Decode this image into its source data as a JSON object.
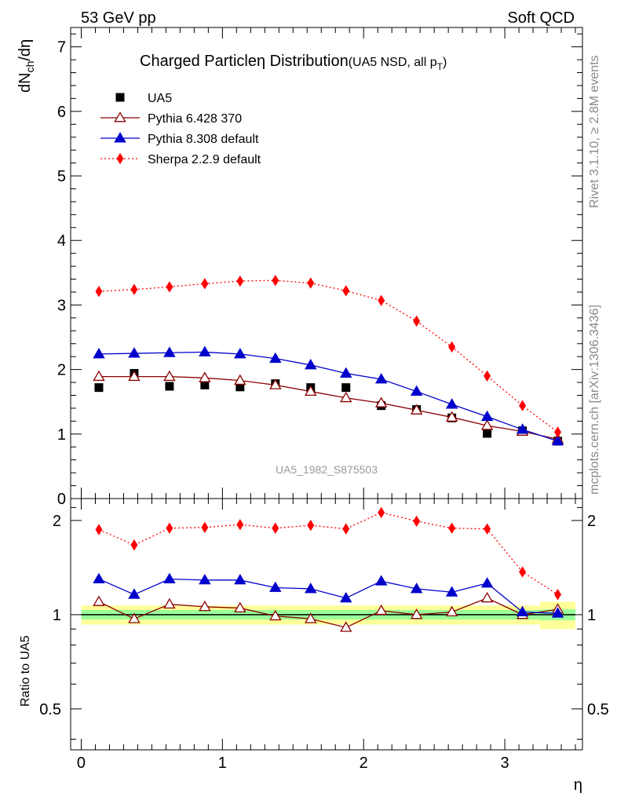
{
  "header": {
    "left": "53 GeV pp",
    "right": "Soft QCD"
  },
  "side": {
    "rivet": "Rivet 3.1.10, ≥ 2.8M events",
    "mcplots": "mcplots.cern.ch [arXiv:1306.3436]"
  },
  "chart_data": {
    "type": "line",
    "title_main": "Charged Particle",
    "title_eta": "η",
    "title_tail": " Distribution",
    "title_sub": "(UA5 NSD, all p",
    "title_sub_idx": "T",
    "title_sub_close": ")",
    "watermark": "UA5_1982_S875503",
    "ylabel_top_a": "dN",
    "ylabel_top_sub": "ch",
    "ylabel_top_b": "/dη",
    "ylabel_ratio": "Ratio to UA5",
    "xlabel": "η",
    "top_ylim": [
      0,
      7.3
    ],
    "top_yticks": [
      "0",
      "1",
      "2",
      "3",
      "4",
      "5",
      "6",
      "7"
    ],
    "ratio_ylim": [
      0.37,
      2.35
    ],
    "ratio_yticks": [
      "0.5",
      "1",
      "2"
    ],
    "ratio_ytick_values": [
      0.5,
      1,
      2
    ],
    "xlim": [
      -0.075,
      3.55
    ],
    "xticks": [
      "0",
      "1",
      "2",
      "3"
    ],
    "x": [
      0.125,
      0.375,
      0.625,
      0.875,
      1.125,
      1.375,
      1.625,
      1.875,
      2.125,
      2.375,
      2.625,
      2.875,
      3.125,
      3.375
    ],
    "band_outer": [
      0.07,
      0.07,
      0.07,
      0.07,
      0.07,
      0.07,
      0.07,
      0.07,
      0.07,
      0.07,
      0.07,
      0.07,
      0.07,
      0.1
    ],
    "band_inner": [
      0.035,
      0.035,
      0.035,
      0.035,
      0.035,
      0.035,
      0.035,
      0.035,
      0.035,
      0.035,
      0.035,
      0.035,
      0.035,
      0.04
    ],
    "series": [
      {
        "name": "UA5",
        "color": "#000000",
        "marker": "square",
        "style": "none",
        "values": [
          1.72,
          1.94,
          1.74,
          1.76,
          1.73,
          1.78,
          1.72,
          1.72,
          1.44,
          1.38,
          1.25,
          1.01,
          1.05,
          0.89
        ]
      },
      {
        "name": "Pythia 6.428 370",
        "color": "#8b0000",
        "marker": "triangle-open",
        "style": "solid",
        "values": [
          1.89,
          1.89,
          1.89,
          1.87,
          1.83,
          1.76,
          1.66,
          1.56,
          1.48,
          1.37,
          1.26,
          1.13,
          1.04,
          0.92
        ],
        "ratio": [
          1.1,
          0.97,
          1.08,
          1.06,
          1.05,
          0.99,
          0.97,
          0.91,
          1.03,
          1.0,
          1.02,
          1.13,
          1.0,
          1.04
        ]
      },
      {
        "name": "Pythia 8.308 default",
        "color": "#0000cc",
        "marker": "triangle",
        "style": "solid",
        "values": [
          2.24,
          2.25,
          2.26,
          2.27,
          2.24,
          2.17,
          2.07,
          1.94,
          1.85,
          1.66,
          1.46,
          1.27,
          1.07,
          0.89
        ],
        "ratio": [
          1.3,
          1.16,
          1.3,
          1.29,
          1.29,
          1.22,
          1.21,
          1.13,
          1.28,
          1.21,
          1.18,
          1.26,
          1.02,
          1.01
        ]
      },
      {
        "name": "Sherpa 2.2.9 default",
        "color": "#ff0000",
        "marker": "diamond",
        "style": "dotted",
        "values": [
          3.21,
          3.24,
          3.28,
          3.33,
          3.37,
          3.38,
          3.34,
          3.22,
          3.07,
          2.75,
          2.35,
          1.9,
          1.44,
          1.03
        ],
        "ratio": [
          1.87,
          1.67,
          1.89,
          1.9,
          1.94,
          1.89,
          1.93,
          1.88,
          2.12,
          1.99,
          1.89,
          1.88,
          1.37,
          1.16
        ]
      }
    ]
  }
}
